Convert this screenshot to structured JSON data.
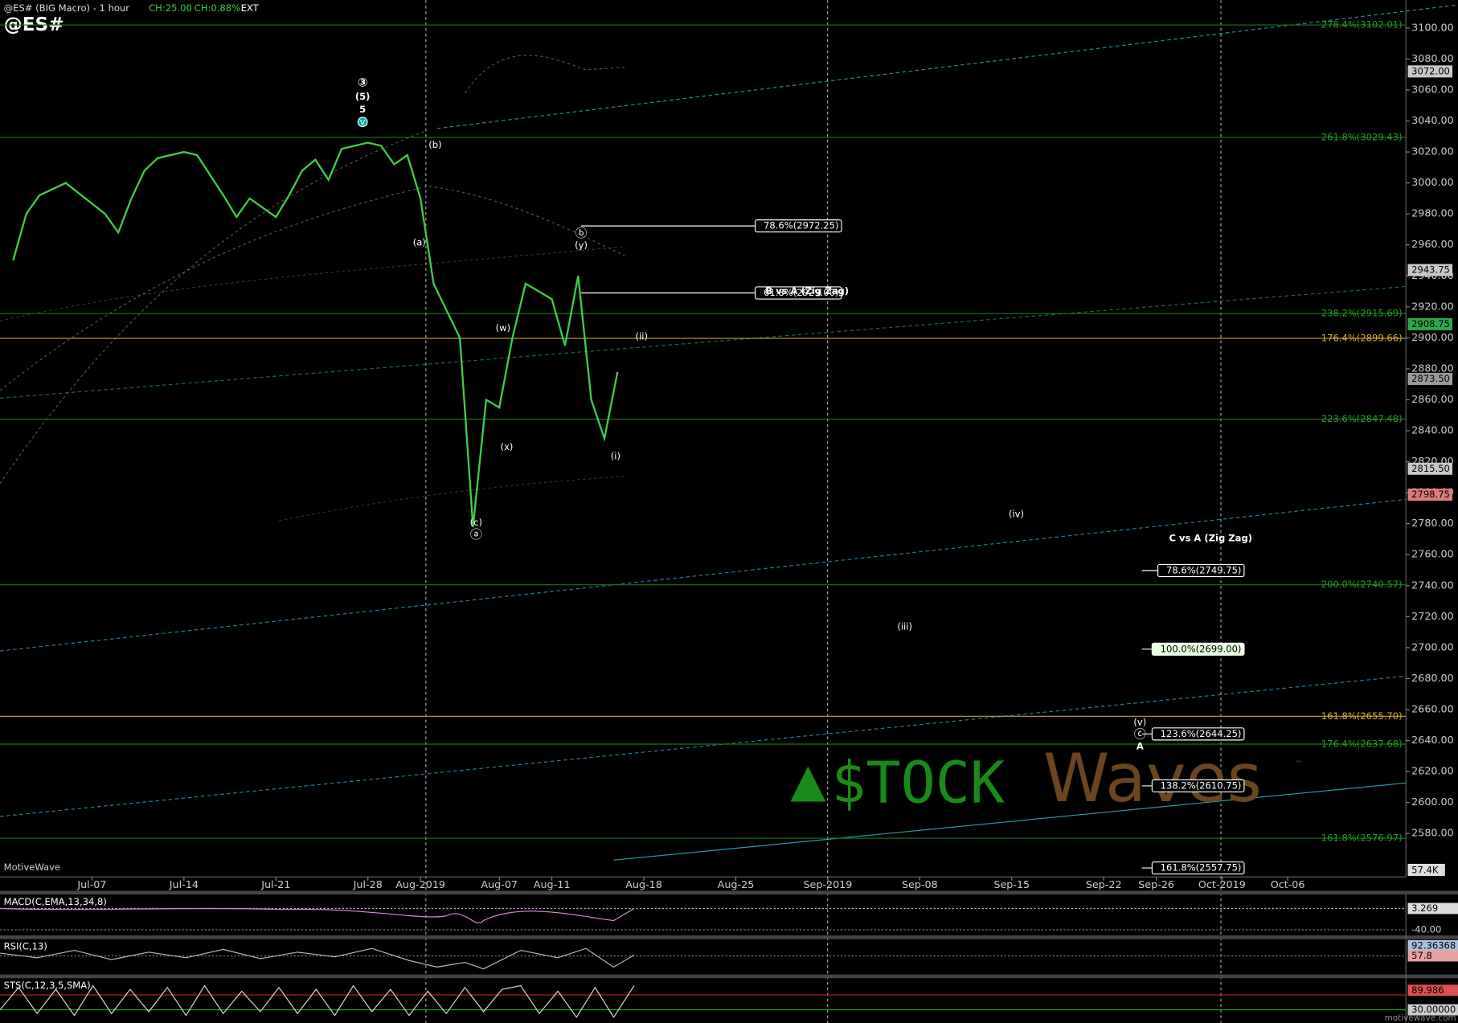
{
  "header": {
    "title": "@ES# (BIG Macro) - 1 hour",
    "change": "CH:25.00",
    "change_pct": "CH:0.88%",
    "session": "EXT",
    "symbol": "@ES#"
  },
  "chart_data": {
    "type": "line",
    "x": [
      "2019-07-01",
      "2019-07-02",
      "2019-07-03",
      "2019-07-05",
      "2019-07-08",
      "2019-07-09",
      "2019-07-10",
      "2019-07-11",
      "2019-07-12",
      "2019-07-14",
      "2019-07-15",
      "2019-07-16",
      "2019-07-17",
      "2019-07-18",
      "2019-07-19",
      "2019-07-21",
      "2019-07-22",
      "2019-07-23",
      "2019-07-24",
      "2019-07-25",
      "2019-07-26",
      "2019-07-28",
      "2019-07-29",
      "2019-07-30",
      "2019-07-31",
      "2019-08-01",
      "2019-08-02",
      "2019-08-04",
      "2019-08-05",
      "2019-08-06",
      "2019-08-07",
      "2019-08-08",
      "2019-08-09",
      "2019-08-11",
      "2019-08-12",
      "2019-08-13",
      "2019-08-14",
      "2019-08-15",
      "2019-08-16"
    ],
    "values": [
      2950,
      2980,
      2992,
      3000,
      2980,
      2968,
      2990,
      3008,
      3016,
      3020,
      3018,
      3005,
      2992,
      2978,
      2990,
      2978,
      2992,
      3008,
      3015,
      3002,
      3022,
      3026,
      3024,
      3012,
      3018,
      2990,
      2935,
      2900,
      2778,
      2860,
      2855,
      2900,
      2935,
      2925,
      2895,
      2940,
      2860,
      2835,
      2878
    ],
    "color": "#3ccf4a",
    "xlim": [
      "2019-06-30",
      "2019-10-15"
    ],
    "xticks": [
      {
        "value": "2019-07-07",
        "label": "Jul-07"
      },
      {
        "value": "2019-07-14",
        "label": "Jul-14"
      },
      {
        "value": "2019-07-21",
        "label": "Jul-21"
      },
      {
        "value": "2019-07-28",
        "label": "Jul-28"
      },
      {
        "value": "2019-08-01",
        "label": "Aug-2019"
      },
      {
        "value": "2019-08-07",
        "label": "Aug-07"
      },
      {
        "value": "2019-08-11",
        "label": "Aug-11"
      },
      {
        "value": "2019-08-18",
        "label": "Aug-18"
      },
      {
        "value": "2019-08-25",
        "label": "Aug-25"
      },
      {
        "value": "2019-09-01",
        "label": "Sep-2019"
      },
      {
        "value": "2019-09-08",
        "label": "Sep-08"
      },
      {
        "value": "2019-09-15",
        "label": "Sep-15"
      },
      {
        "value": "2019-09-22",
        "label": "Sep-22"
      },
      {
        "value": "2019-09-26",
        "label": "Sep-26"
      },
      {
        "value": "2019-10-01",
        "label": "Oct-2019"
      },
      {
        "value": "2019-10-06",
        "label": "Oct-06"
      }
    ],
    "ylim": [
      2552,
      3118
    ],
    "yticks": [
      {
        "value": 3100,
        "label": "3100.00"
      },
      {
        "value": 3080,
        "label": "3080.00"
      },
      {
        "value": 3060,
        "label": "3060.00"
      },
      {
        "value": 3040,
        "label": "3040.00"
      },
      {
        "value": 3020,
        "label": "3020.00"
      },
      {
        "value": 3000,
        "label": "3000.00"
      },
      {
        "value": 2980,
        "label": "2980.00"
      },
      {
        "value": 2960,
        "label": "2960.00"
      },
      {
        "value": 2940,
        "label": "2940.00"
      },
      {
        "value": 2920,
        "label": "2920.00"
      },
      {
        "value": 2900,
        "label": "2900.00"
      },
      {
        "value": 2880,
        "label": "2880.00"
      },
      {
        "value": 2860,
        "label": "2860.00"
      },
      {
        "value": 2840,
        "label": "2840.00"
      },
      {
        "value": 2820,
        "label": "2820.00"
      },
      {
        "value": 2800,
        "label": "2800.00"
      },
      {
        "value": 2780,
        "label": "2780.00"
      },
      {
        "value": 2760,
        "label": "2760.00"
      },
      {
        "value": 2740,
        "label": "2740.00"
      },
      {
        "value": 2720,
        "label": "2720.00"
      },
      {
        "value": 2700,
        "label": "2700.00"
      },
      {
        "value": 2680,
        "label": "2680.00"
      },
      {
        "value": 2660,
        "label": "2660.00"
      },
      {
        "value": 2640,
        "label": "2640.00"
      },
      {
        "value": 2620,
        "label": "2620.00"
      },
      {
        "value": 2600,
        "label": "2600.00"
      },
      {
        "value": 2580,
        "label": "2580.00"
      }
    ],
    "levels": [
      {
        "label": "278.4%(3102.01)",
        "value": 3102.01,
        "color": "#167a16"
      },
      {
        "label": "261.8%(3029.43)",
        "value": 3029.43,
        "color": "#167a16"
      },
      {
        "label": "238.2%(2915.69)",
        "value": 2915.69,
        "color": "#167a16"
      },
      {
        "label": "176.4%(2899.66)",
        "value": 2899.66,
        "color": "#c9a227"
      },
      {
        "label": "223.6%(2847.48)",
        "value": 2847.48,
        "color": "#167a16"
      },
      {
        "label": "200.0%(2740.57)",
        "value": 2740.57,
        "color": "#167a16"
      },
      {
        "label": "161.8%(2655.70)",
        "value": 2655.7,
        "color": "#c9a227"
      },
      {
        "label": "176.4%(2637.68)",
        "value": 2637.68,
        "color": "#167a16"
      },
      {
        "label": "161.8%(2576.97)",
        "value": 2576.97,
        "color": "#167a16"
      }
    ],
    "targets": [
      {
        "label": "78.6%(2972.25)",
        "value": 2972.25
      },
      {
        "label": "61.8%(2929.00)",
        "value": 2929
      },
      {
        "label": "78.6%(2749.75)",
        "value": 2749.75
      },
      {
        "label": "100.0%(2699.00)",
        "value": 2699
      },
      {
        "label": "123.6%(2644.25)",
        "value": 2644.25
      },
      {
        "label": "138.2%(2610.75)",
        "value": 2610.75
      },
      {
        "label": "161.8%(2557.75)",
        "value": 2557.75
      }
    ],
    "notes": [
      "B vs A (Zig Zag)",
      "C vs A (Zig Zag)"
    ],
    "price_badges": [
      {
        "value": 3072,
        "label": "3072.00",
        "color": "#c8c8c8"
      },
      {
        "value": 2943.75,
        "label": "2943.75",
        "color": "#c8c8c8"
      },
      {
        "value": 2908.75,
        "label": "2908.75",
        "color": "#2fa84a"
      },
      {
        "value": 2873.5,
        "label": "2873.50",
        "color": "#9a9a9a"
      },
      {
        "value": 2815.5,
        "label": "2815.50",
        "color": "#c8c8c8"
      },
      {
        "value": 2798.75,
        "label": "2798.75",
        "color": "#e07a7a"
      }
    ],
    "wave_labels": [
      "③",
      "(5)",
      "5",
      "v",
      "(b)",
      "(a)",
      "(c)",
      "ⓐ",
      "(x)",
      "(w)",
      "ⓑ",
      "(y)",
      "(ii)",
      "(i)",
      "(iv)",
      "(iii)",
      "(v)",
      "ⓒ",
      "A"
    ]
  },
  "panes": [
    {
      "label": "MACD(C,EMA,13,34,8)",
      "badges": [
        "3.269",
        "-40.00"
      ]
    },
    {
      "label": "RSI(C,13)",
      "badges": [
        "92.36368",
        "57.8"
      ]
    },
    {
      "label": "STS(C,12,3,5,SMA)",
      "badges": [
        "89.986",
        "30.00000"
      ]
    }
  ],
  "volume_badge": "57.4K",
  "watermark": "MotiveWave",
  "footer": "motivewave.com",
  "logo": {
    "left": "$TOCK",
    "right": "Waves",
    "tm": "™"
  }
}
